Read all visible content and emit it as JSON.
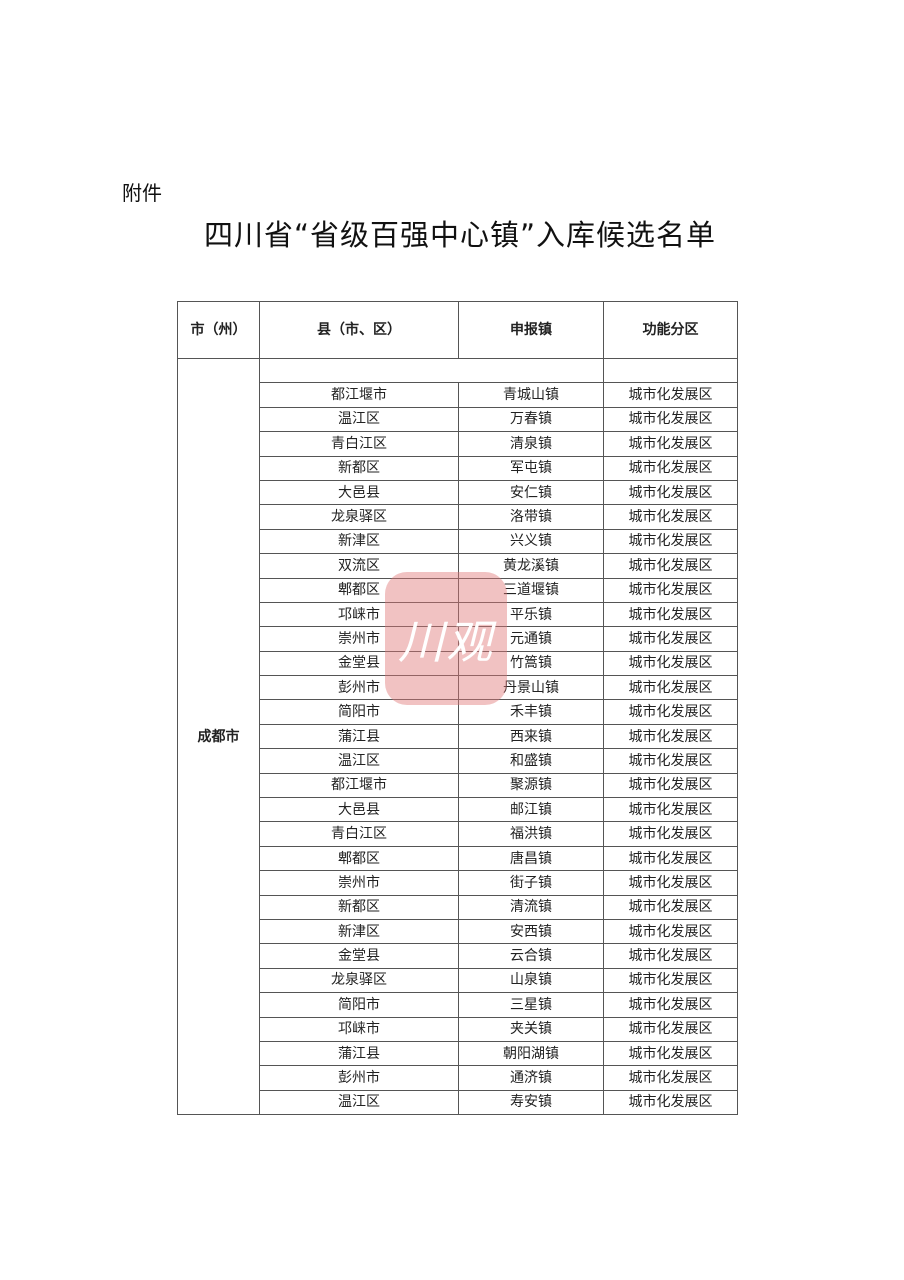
{
  "attachment_label": "附件",
  "title": "四川省“省级百强中心镇”入库候选名单",
  "table": {
    "headers": [
      "市（州）",
      "县（市、区）",
      "申报镇",
      "功能分区"
    ],
    "city": "成都市",
    "rows": [
      [
        "都江堰市",
        "青城山镇",
        "城市化发展区"
      ],
      [
        "温江区",
        "万春镇",
        "城市化发展区"
      ],
      [
        "青白江区",
        "清泉镇",
        "城市化发展区"
      ],
      [
        "新都区",
        "军屯镇",
        "城市化发展区"
      ],
      [
        "大邑县",
        "安仁镇",
        "城市化发展区"
      ],
      [
        "龙泉驿区",
        "洛带镇",
        "城市化发展区"
      ],
      [
        "新津区",
        "兴义镇",
        "城市化发展区"
      ],
      [
        "双流区",
        "黄龙溪镇",
        "城市化发展区"
      ],
      [
        "郫都区",
        "三道堰镇",
        "城市化发展区"
      ],
      [
        "邛崃市",
        "平乐镇",
        "城市化发展区"
      ],
      [
        "崇州市",
        "元通镇",
        "城市化发展区"
      ],
      [
        "金堂县",
        "竹篙镇",
        "城市化发展区"
      ],
      [
        "彭州市",
        "丹景山镇",
        "城市化发展区"
      ],
      [
        "简阳市",
        "禾丰镇",
        "城市化发展区"
      ],
      [
        "蒲江县",
        "西来镇",
        "城市化发展区"
      ],
      [
        "温江区",
        "和盛镇",
        "城市化发展区"
      ],
      [
        "都江堰市",
        "聚源镇",
        "城市化发展区"
      ],
      [
        "大邑县",
        "邮江镇",
        "城市化发展区"
      ],
      [
        "青白江区",
        "福洪镇",
        "城市化发展区"
      ],
      [
        "郫都区",
        "唐昌镇",
        "城市化发展区"
      ],
      [
        "崇州市",
        "街子镇",
        "城市化发展区"
      ],
      [
        "新都区",
        "清流镇",
        "城市化发展区"
      ],
      [
        "新津区",
        "安西镇",
        "城市化发展区"
      ],
      [
        "金堂县",
        "云合镇",
        "城市化发展区"
      ],
      [
        "龙泉驿区",
        "山泉镇",
        "城市化发展区"
      ],
      [
        "简阳市",
        "三星镇",
        "城市化发展区"
      ],
      [
        "邛崃市",
        "夹关镇",
        "城市化发展区"
      ],
      [
        "蒲江县",
        "朝阳湖镇",
        "城市化发展区"
      ],
      [
        "彭州市",
        "通济镇",
        "城市化发展区"
      ],
      [
        "温江区",
        "寿安镇",
        "城市化发展区"
      ]
    ]
  },
  "watermark": {
    "text": "川观",
    "color": "#e07878"
  }
}
